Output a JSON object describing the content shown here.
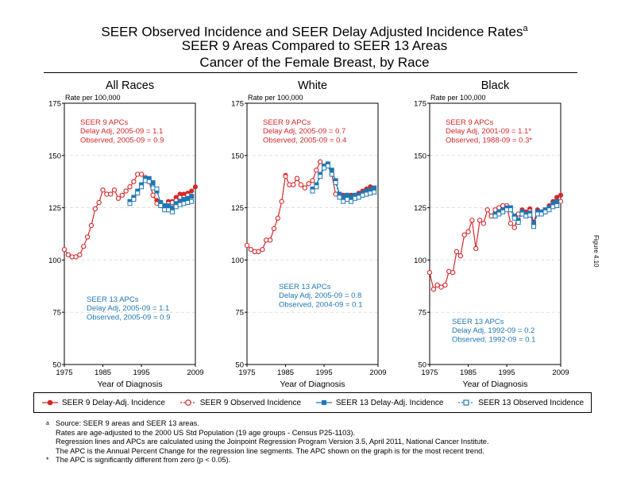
{
  "header": {
    "title_line1": "SEER Observed Incidence and SEER Delay Adjusted Incidence Rates",
    "title_sup": "a",
    "title_line2": "SEER 9 Areas Compared to SEER 13 Areas",
    "title_line3": "Cancer of the Female Breast, by Race"
  },
  "side_label": "Figure 4.10",
  "colors": {
    "seer9": "#d62728",
    "seer13": "#1f77b4",
    "grid": "#cccccc"
  },
  "chart_data": [
    {
      "type": "line",
      "title": "All Races",
      "ylabel": "Rate per 100,000",
      "xlabel": "Year of Diagnosis",
      "xlim": [
        1975,
        2009
      ],
      "ylim": [
        50,
        175
      ],
      "xticks": [
        1975,
        1985,
        1995,
        2009
      ],
      "yticks": [
        50,
        75,
        100,
        125,
        150,
        175
      ],
      "annotations": {
        "seer9": [
          "SEER 9 APCs",
          "Delay Adj, 2005-09 = 1.1",
          "Observed, 2005-09 = 0.9"
        ],
        "seer13": [
          "SEER 13 APCs",
          "Delay Adj, 2005-09 = 1.1",
          "Observed, 2005-09 = 0.9"
        ]
      },
      "series": [
        {
          "name": "SEER 9 Delay-Adj. Incidence",
          "x_start": 1975,
          "values": [
            105,
            102.5,
            101.5,
            101.5,
            102.5,
            106.5,
            111,
            116.5,
            124.5,
            127.5,
            133.5,
            131.5,
            131.5,
            133.5,
            129.5,
            131,
            133,
            135,
            137.5,
            141,
            141,
            139.5,
            137.5,
            131,
            128.5,
            127.5,
            126,
            128,
            128,
            130,
            131.5,
            131.5,
            132,
            133,
            135
          ]
        },
        {
          "name": "SEER 9 Observed Incidence",
          "x_start": 1975,
          "values": [
            105,
            102.5,
            101.5,
            101.5,
            102.5,
            106.5,
            111,
            116.5,
            124.5,
            127.5,
            133.5,
            131.5,
            131.5,
            133.5,
            129.5,
            131,
            133,
            135,
            137.5,
            141,
            141,
            139.5,
            137.5,
            131,
            127,
            126,
            125,
            127,
            127.5,
            128.5,
            130,
            130,
            131
          ]
        },
        {
          "name": "SEER 13 Delay-Adj. Incidence",
          "x_start": 1992,
          "values": [
            128,
            130,
            133,
            136,
            139,
            139,
            137,
            133,
            127.5,
            126,
            126,
            125,
            127,
            128,
            129,
            129.5,
            130.5
          ]
        },
        {
          "name": "SEER 13 Observed Incidence",
          "x_start": 1992,
          "values": [
            127,
            129,
            132,
            135,
            138,
            137.5,
            134.5,
            134,
            126,
            124,
            124,
            123,
            125.5,
            126.5,
            127,
            127.5,
            128
          ]
        }
      ]
    },
    {
      "type": "line",
      "title": "White",
      "ylabel": "Rate per 100,000",
      "xlabel": "Year of Diagnosis",
      "xlim": [
        1975,
        2009
      ],
      "ylim": [
        50,
        175
      ],
      "xticks": [
        1975,
        1985,
        1995,
        2009
      ],
      "yticks": [
        50,
        75,
        100,
        125,
        150,
        175
      ],
      "annotations": {
        "seer9": [
          "SEER 9 APCs",
          "Delay Adj, 2005-09 = 0.7",
          "Observed, 2005-09 = 0.4"
        ],
        "seer13": [
          "SEER 13 APCs",
          "Delay Adj, 2005-09 = 0.8",
          "Observed, 2004-09 = 0.1"
        ]
      },
      "series": [
        {
          "name": "SEER 9 Delay-Adj. Incidence",
          "x_start": 1975,
          "values": [
            107,
            105,
            104,
            104,
            105,
            109.5,
            109.5,
            115,
            120,
            128,
            140.5,
            136,
            136,
            139,
            136,
            134.5,
            136.5,
            138,
            143,
            147,
            145,
            145,
            141,
            131.5,
            131,
            131,
            130,
            131,
            131,
            132,
            133,
            134,
            135
          ]
        },
        {
          "name": "SEER 9 Observed Incidence",
          "x_start": 1975,
          "values": [
            107,
            105,
            104,
            104,
            105,
            109.5,
            109.5,
            115,
            120,
            128,
            140,
            136,
            136,
            139,
            136,
            134.5,
            136.5,
            138,
            143,
            147,
            145,
            145,
            141,
            131.5,
            130,
            130,
            129,
            130,
            130.5,
            131,
            132,
            132.5,
            133
          ]
        },
        {
          "name": "SEER 13 Delay-Adj. Incidence",
          "x_start": 1992,
          "values": [
            134,
            136,
            141,
            145,
            146,
            143,
            138,
            131.5,
            130,
            131,
            130,
            131,
            131,
            132,
            133,
            133.5,
            134.5
          ]
        },
        {
          "name": "SEER 13 Observed Incidence",
          "x_start": 1992,
          "values": [
            133,
            135,
            140,
            144,
            145,
            141,
            137,
            130,
            128,
            129,
            128,
            129.5,
            130,
            131,
            131.5,
            132,
            132.5
          ]
        }
      ]
    },
    {
      "type": "line",
      "title": "Black",
      "ylabel": "Rate per 100,000",
      "xlabel": "Year of Diagnosis",
      "xlim": [
        1975,
        2009
      ],
      "ylim": [
        50,
        175
      ],
      "xticks": [
        1975,
        1985,
        1995,
        2009
      ],
      "yticks": [
        50,
        75,
        100,
        125,
        150,
        175
      ],
      "annotations": {
        "seer9": [
          "SEER 9 APCs",
          "Delay Adj, 2001-09 = 1.1*",
          "Observed, 1988-09 = 0.3*"
        ],
        "seer13": [
          "SEER 13 APCs",
          "Delay Adj, 1992-09 = 0.2",
          "Observed, 1992-09 = 0.1"
        ]
      },
      "series": [
        {
          "name": "SEER 9 Delay-Adj. Incidence",
          "x_start": 1975,
          "values": [
            94,
            86,
            88,
            87,
            88,
            94.5,
            94,
            104,
            102,
            112,
            113.5,
            119,
            105.5,
            119,
            117.5,
            124,
            121,
            124,
            125,
            126,
            126,
            117.5,
            115.5,
            122,
            124,
            123,
            124.5,
            118,
            124,
            123,
            124,
            126,
            128,
            130,
            131
          ]
        },
        {
          "name": "SEER 9 Observed Incidence",
          "x_start": 1975,
          "values": [
            94,
            86,
            88,
            87,
            88,
            94.5,
            94,
            104,
            102,
            112,
            113.5,
            119,
            105.5,
            119,
            117.5,
            124,
            121,
            124,
            125,
            126,
            126,
            117.5,
            115.5,
            122,
            123,
            122,
            123.5,
            117,
            123,
            122,
            123,
            125,
            126.5,
            127.5,
            128
          ]
        },
        {
          "name": "SEER 13 Delay-Adj. Incidence",
          "x_start": 1992,
          "values": [
            122,
            123,
            124,
            125,
            125,
            121,
            119,
            123,
            122,
            122.5,
            117,
            123,
            123,
            124,
            125,
            127,
            128
          ]
        },
        {
          "name": "SEER 13 Observed Incidence",
          "x_start": 1992,
          "values": [
            121,
            122,
            123,
            124,
            124,
            120,
            118,
            122,
            121,
            121.5,
            116,
            122,
            122,
            123,
            124,
            125.5,
            126
          ]
        }
      ]
    }
  ],
  "legend": [
    {
      "label": "SEER 9 Delay-Adj. Incidence",
      "color": "#d62728",
      "marker": "filled-circle"
    },
    {
      "label": "SEER 9 Observed Incidence",
      "color": "#d62728",
      "marker": "open-circle"
    },
    {
      "label": "SEER 13 Delay-Adj. Incidence",
      "color": "#1f77b4",
      "marker": "filled-square"
    },
    {
      "label": "SEER 13 Observed Incidence",
      "color": "#1f77b4",
      "marker": "open-square"
    }
  ],
  "footnotes": {
    "a_marker": "a",
    "line1": "Source: SEER 9 areas and SEER 13 areas.",
    "line2": "Rates are age-adjusted to the 2000 US Std Population (19 age groups - Census P25-1103).",
    "line3": "Regression lines and APCs are calculated using the Joinpoint Regression Program Version 3.5, April 2011, National Cancer Institute.",
    "line4": "The APC is the Annual Percent Change for the regression line segments. The APC shown on the graph is for the most recent trend.",
    "star_marker": "*",
    "line5": "The APC is significantly different from zero (p < 0.05)."
  }
}
